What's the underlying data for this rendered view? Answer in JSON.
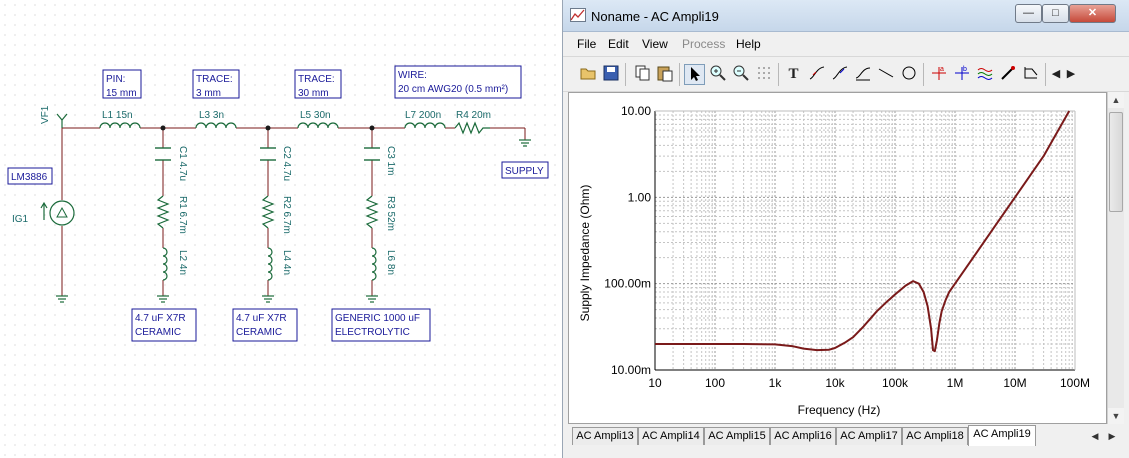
{
  "schematic": {
    "boxes": [
      {
        "label": "LM3886"
      },
      {
        "label": "PIN:\n15 mm"
      },
      {
        "label": "TRACE:\n3 mm"
      },
      {
        "label": "TRACE:\n30 mm"
      },
      {
        "label": "WIRE:\n20 cm AWG20 (0.5 mm²)"
      },
      {
        "label": "SUPPLY"
      },
      {
        "label": "4.7 uF X7R\nCERAMIC"
      },
      {
        "label": "4.7 uF X7R\nCERAMIC"
      },
      {
        "label": "GENERIC 1000 uF\nELECTROLYTIC"
      }
    ],
    "labels": {
      "vf1": "VF1",
      "ig1": "IG1",
      "l1": "L1 15n",
      "l3": "L3 3n",
      "l5": "L5 30n",
      "l7": "L7 200n",
      "r4": "R4 20m",
      "c1": "C1 4.7u",
      "r1": "R1 6.7m",
      "l2": "L2 4n",
      "c2": "C2 4.7u",
      "r2": "R2 6.7m",
      "l4": "L4 4n",
      "c3": "C3 1m",
      "r3": "R3 52m",
      "l6": "L6 8n"
    }
  },
  "window": {
    "title": "Noname - AC Ampli19",
    "buttons": {
      "minimize": "—",
      "maximize": "□",
      "close": "✕"
    },
    "menu": [
      "File",
      "Edit",
      "View",
      "Process",
      "Help"
    ],
    "menu_disabled": [
      "Process"
    ],
    "toolbar_icons": [
      "open-icon",
      "save-icon",
      "copy-icon",
      "paste-icon",
      "pointer-icon",
      "zoom-in-icon",
      "zoom-out-icon",
      "grid-icon",
      "text-icon",
      "cursor-a-icon",
      "cursor-b-icon",
      "curve-icon",
      "line-icon",
      "circle-icon",
      "marker-a-icon",
      "marker-b-icon",
      "waves-icon",
      "pen-icon",
      "step-icon",
      "scroll-left-icon",
      "scroll-right-icon"
    ],
    "tabs": [
      "AC Ampli13",
      "AC Ampli14",
      "AC Ampli15",
      "AC Ampli16",
      "AC Ampli17",
      "AC Ampli18",
      "AC Ampli19"
    ],
    "active_tab": "AC Ampli19"
  },
  "chart_data": {
    "type": "line",
    "xlabel": "Frequency (Hz)",
    "ylabel": "Supply Impedance (Ohm)",
    "x_scale": "log",
    "y_scale": "log",
    "xlim": [
      10,
      100000000
    ],
    "ylim": [
      0.01,
      10
    ],
    "x_tick_labels": [
      "10",
      "100",
      "1k",
      "10k",
      "100k",
      "1M",
      "10M",
      "100M"
    ],
    "y_tick_labels": [
      "10.00m",
      "100.00m",
      "1.00",
      "10.00"
    ],
    "grid": true,
    "line_color": "#7a1a1a",
    "series": [
      {
        "x": [
          10,
          30,
          100,
          300,
          1000,
          2000,
          3000,
          5000,
          8000,
          10000,
          15000,
          20000,
          30000,
          50000,
          70000,
          100000,
          150000,
          200000,
          250000,
          300000,
          350000,
          400000,
          430000,
          460000,
          500000,
          550000,
          600000,
          700000,
          800000,
          1000000,
          2000000,
          5000000,
          10000000,
          30000000,
          80000000
        ],
        "y": [
          0.02,
          0.02,
          0.02,
          0.02,
          0.0198,
          0.0188,
          0.0177,
          0.017,
          0.0172,
          0.018,
          0.021,
          0.024,
          0.032,
          0.048,
          0.06,
          0.075,
          0.095,
          0.107,
          0.1,
          0.08,
          0.055,
          0.03,
          0.017,
          0.0165,
          0.022,
          0.035,
          0.048,
          0.065,
          0.08,
          0.1,
          0.2,
          0.5,
          1.0,
          3.0,
          10.0
        ]
      }
    ]
  }
}
